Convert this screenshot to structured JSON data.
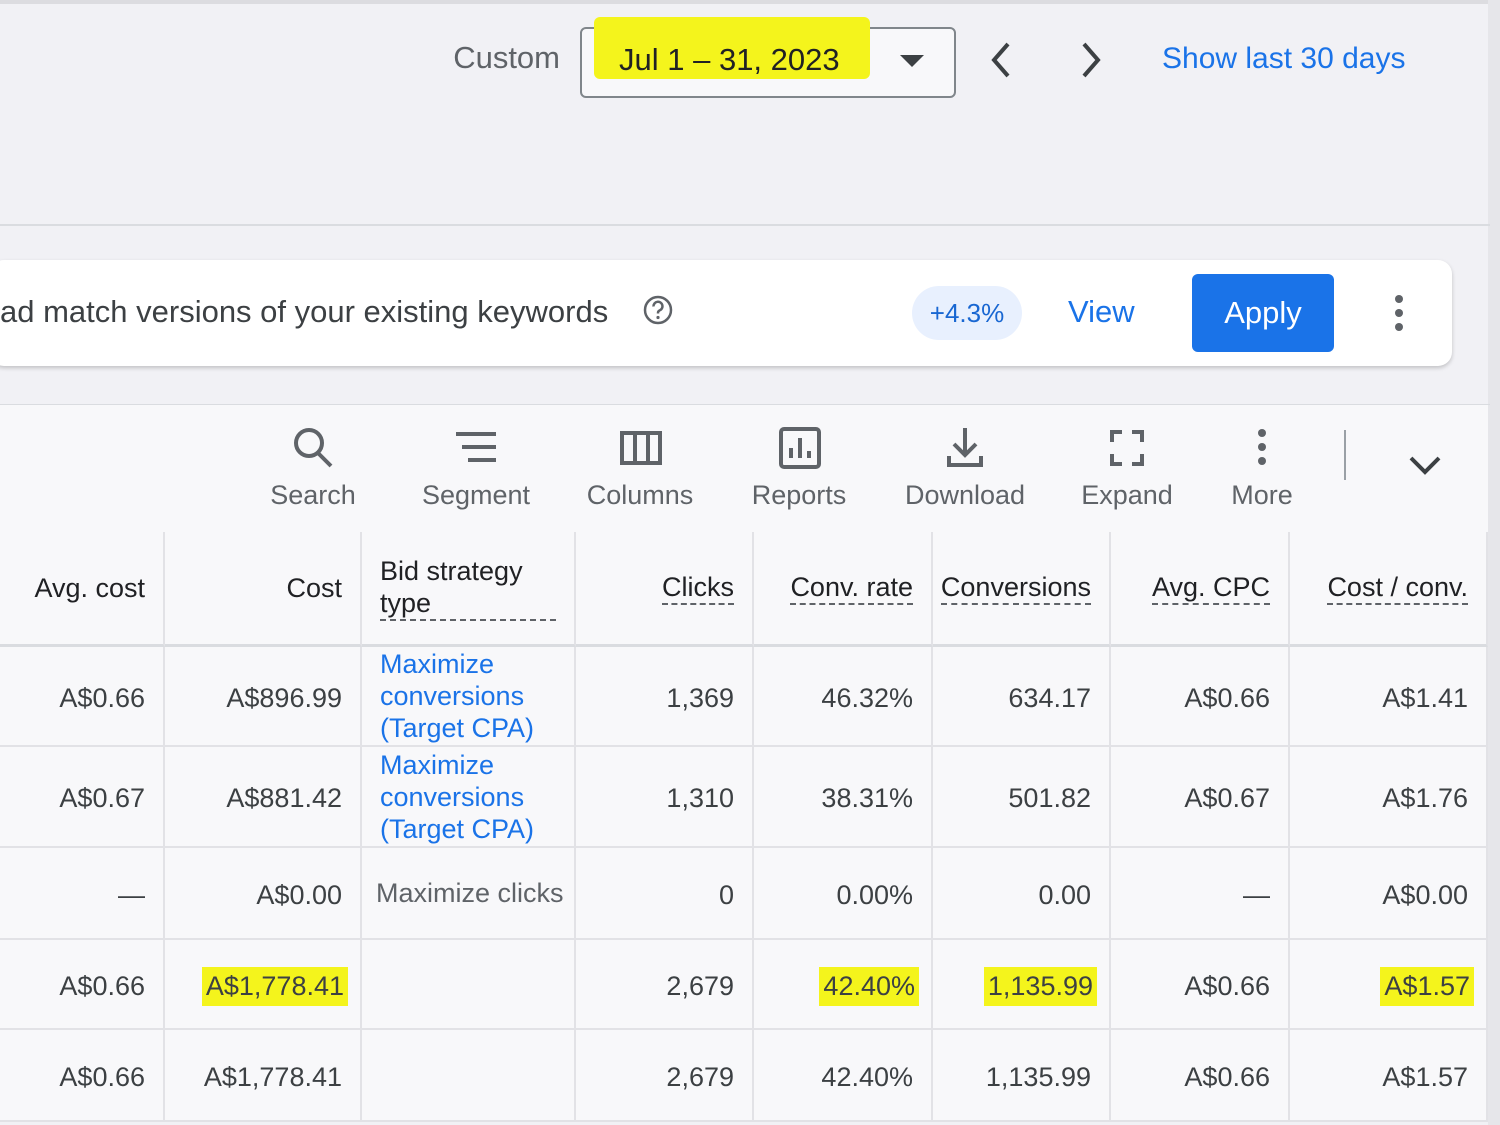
{
  "date_range": {
    "label": "Custom",
    "value": "Jul 1 – 31, 2023",
    "show_last": "Show last 30 days"
  },
  "recommendation": {
    "text": "ad match versions of your existing keywords",
    "uplift": "+4.3%",
    "view": "View",
    "apply": "Apply"
  },
  "toolbar": [
    "Search",
    "Segment",
    "Columns",
    "Reports",
    "Download",
    "Expand",
    "More"
  ],
  "table": {
    "headers": [
      "Avg. cost",
      "Cost",
      "Bid strategy type",
      "Clicks",
      "Conv. rate",
      "Conversions",
      "Avg. CPC",
      "Cost / conv."
    ],
    "rows": [
      [
        "A$0.66",
        "A$896.99",
        "Maximize conversions (Target CPA)",
        "1,369",
        "46.32%",
        "634.17",
        "A$0.66",
        "A$1.41"
      ],
      [
        "A$0.67",
        "A$881.42",
        "Maximize conversions (Target CPA)",
        "1,310",
        "38.31%",
        "501.82",
        "A$0.67",
        "A$1.76"
      ],
      [
        "—",
        "A$0.00",
        "Maximize clicks",
        "0",
        "0.00%",
        "0.00",
        "—",
        "A$0.00"
      ],
      [
        "A$0.66",
        "A$1,778.41",
        null,
        "2,679",
        "42.40%",
        "1,135.99",
        "A$0.66",
        "A$1.57"
      ],
      [
        "A$0.66",
        "A$1,778.41",
        null,
        "2,679",
        "42.40%",
        "1,135.99",
        "A$0.66",
        "A$1.57"
      ]
    ]
  }
}
